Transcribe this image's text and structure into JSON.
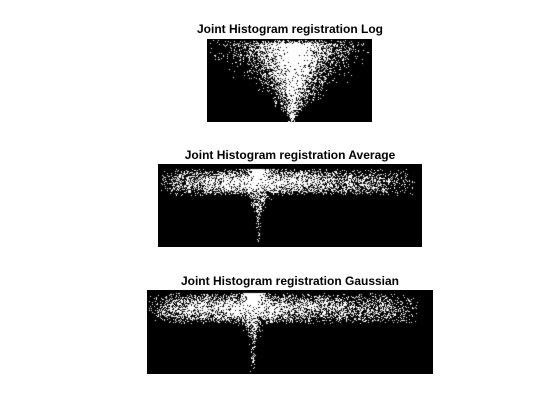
{
  "chart_data": [
    {
      "type": "heatmap",
      "title": "Joint Histogram registration Log",
      "colormap": [
        "#000000",
        "#ffffff"
      ],
      "axes_visible": false,
      "pattern": "diffuse bright cloud centred across upper half, narrowing into a thin vertical streak near the centre"
    },
    {
      "type": "heatmap",
      "title": "Joint Histogram registration Average",
      "colormap": [
        "#000000",
        "#ffffff"
      ],
      "axes_visible": false,
      "pattern": "wide bright horizontal band along top with a sharp vertical spike descending left of centre"
    },
    {
      "type": "heatmap",
      "title": "Joint Histogram registration Gaussian",
      "colormap": [
        "#000000",
        "#ffffff"
      ],
      "axes_visible": false,
      "pattern": "wide bright horizontal band along top with a sharp vertical spike descending left of centre"
    }
  ]
}
